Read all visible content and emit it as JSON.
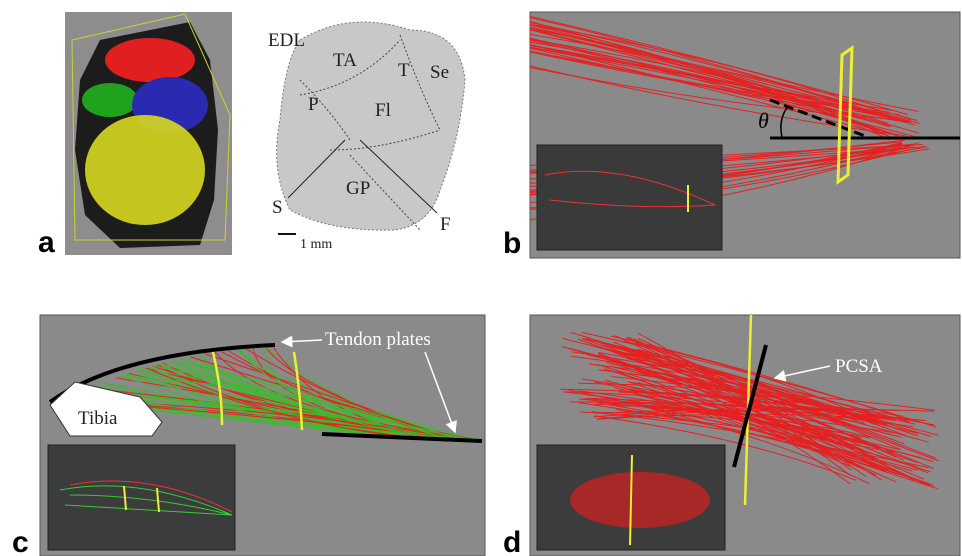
{
  "panel_a": {
    "label": "a",
    "cross_section_labels": [
      "EDL",
      "TA",
      "T",
      "Se",
      "P",
      "Fl",
      "S",
      "GP",
      "F"
    ],
    "scale_bar": "1 mm"
  },
  "panel_b": {
    "label": "b",
    "angle": "θ"
  },
  "panel_c": {
    "label": "c",
    "annotations": [
      "Tendon plates",
      "Tibia"
    ]
  },
  "panel_d": {
    "label": "d",
    "annotation": "PCSA"
  }
}
